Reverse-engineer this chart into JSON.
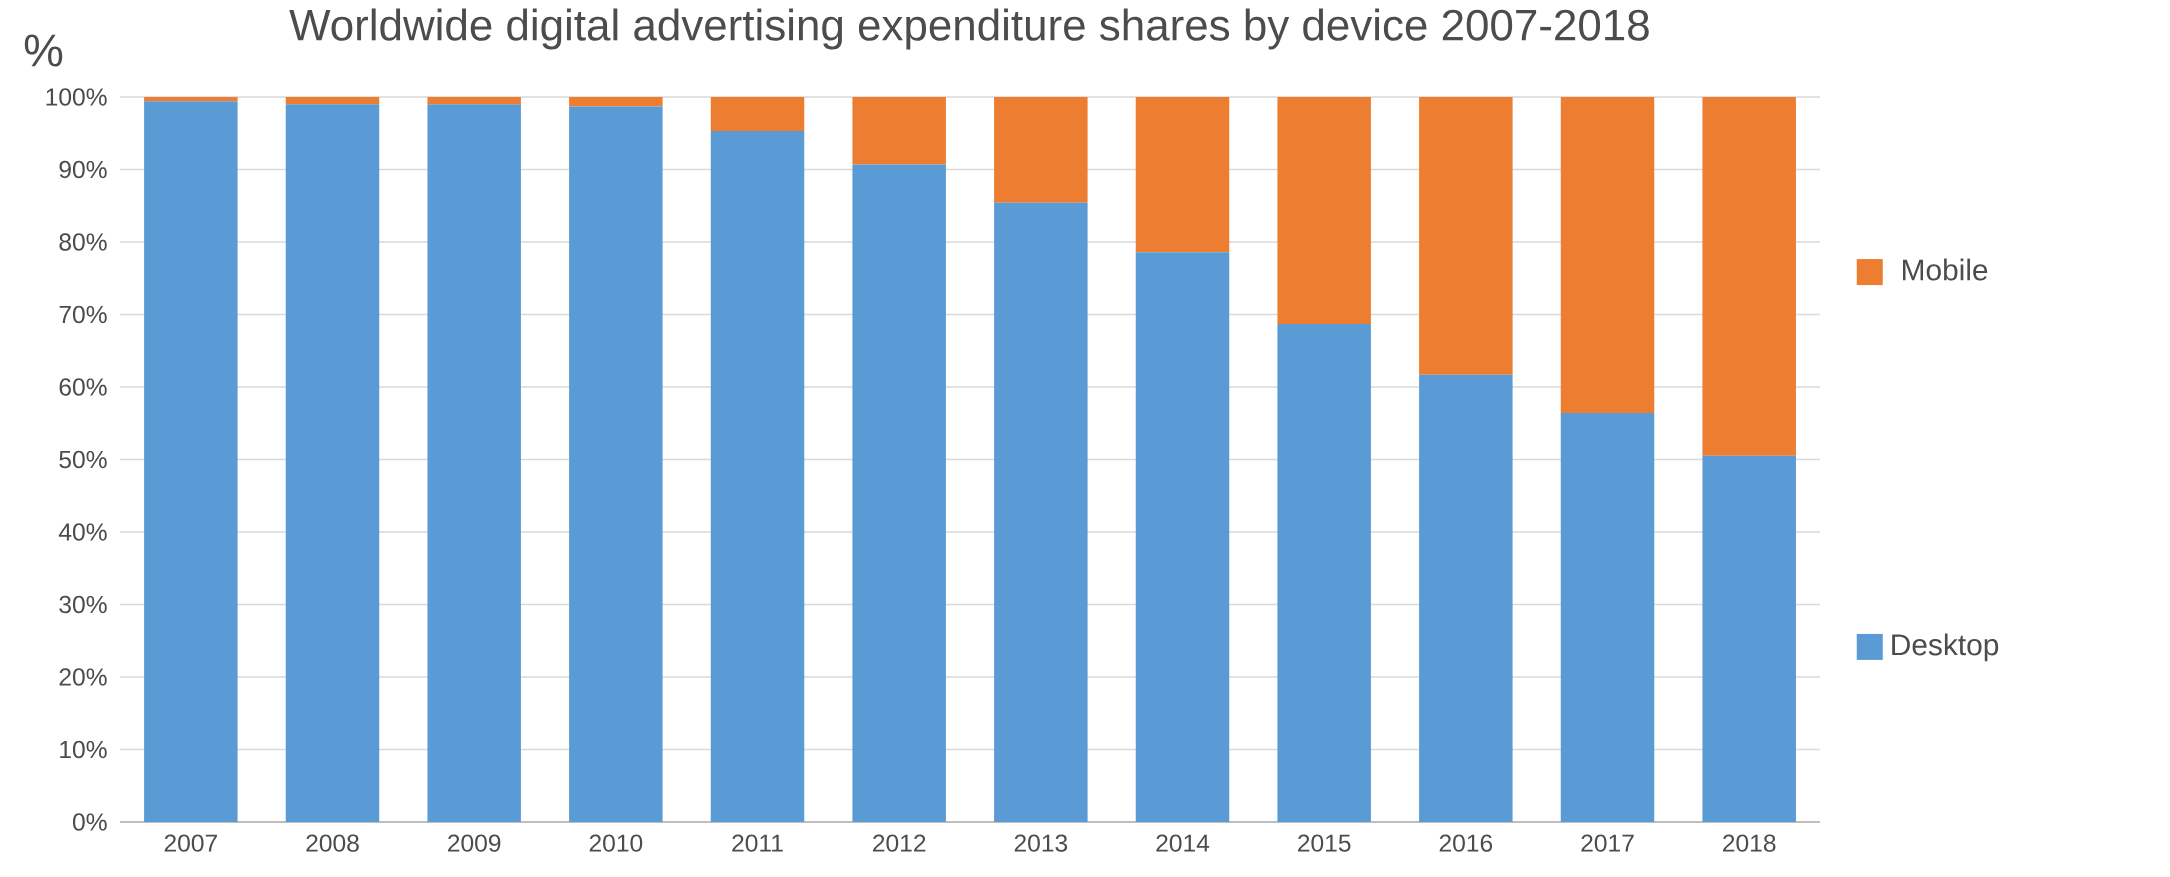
{
  "chart_data": {
    "type": "bar",
    "title": "Worldwide digital advertising expenditure shares by device 2007-2018",
    "ylabel": "%",
    "categories": [
      "2007",
      "2008",
      "2009",
      "2010",
      "2011",
      "2012",
      "2013",
      "2014",
      "2015",
      "2016",
      "2017",
      "2018"
    ],
    "stacked": true,
    "series": [
      {
        "name": "Desktop",
        "color": "#5b9bd5",
        "values": [
          99.4,
          99.0,
          99.0,
          98.7,
          95.3,
          90.7,
          85.4,
          78.6,
          68.7,
          61.7,
          56.4,
          50.5
        ]
      },
      {
        "name": "Mobile",
        "color": "#ed7d31",
        "values": [
          0.6,
          1.0,
          1.0,
          1.3,
          4.7,
          9.3,
          14.6,
          21.4,
          31.3,
          38.3,
          43.6,
          49.5
        ]
      }
    ],
    "ylim": [
      0,
      100
    ],
    "yticks": [
      {
        "value": 0,
        "label": "0%"
      },
      {
        "value": 10,
        "label": "10%"
      },
      {
        "value": 20,
        "label": "20%"
      },
      {
        "value": 30,
        "label": "30%"
      },
      {
        "value": 40,
        "label": "40%"
      },
      {
        "value": 50,
        "label": "50%"
      },
      {
        "value": 60,
        "label": "60%"
      },
      {
        "value": 70,
        "label": "70%"
      },
      {
        "value": 80,
        "label": "80%"
      },
      {
        "value": 90,
        "label": "90%"
      },
      {
        "value": 100,
        "label": "100%"
      }
    ],
    "grid": "y",
    "legend": "right"
  }
}
